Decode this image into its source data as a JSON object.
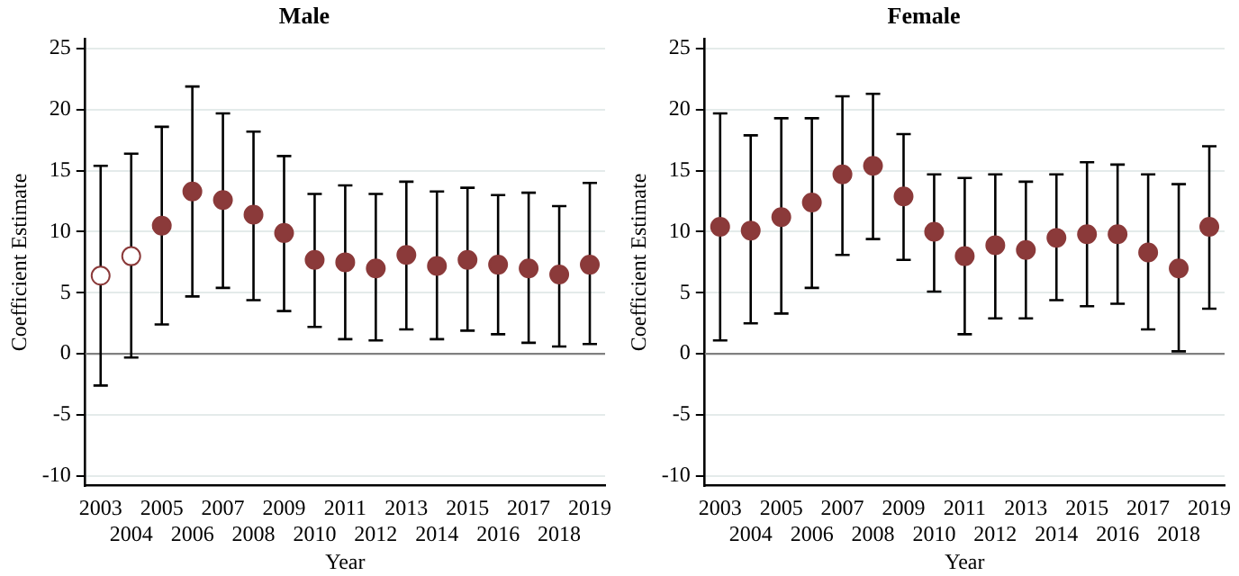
{
  "chart_data": [
    {
      "type": "scatter",
      "title": "Male",
      "xlabel": "Year",
      "ylabel": "Coefficient Estimate",
      "categories": [
        "2003",
        "2004",
        "2005",
        "2006",
        "2007",
        "2008",
        "2009",
        "2010",
        "2011",
        "2012",
        "2013",
        "2014",
        "2015",
        "2016",
        "2017",
        "2018",
        "2019"
      ],
      "ylim": [
        -10.8,
        25.8
      ],
      "yticks": [
        -10,
        -5,
        0,
        5,
        10,
        15,
        20,
        25
      ],
      "grid": "y",
      "marker": "circle",
      "ref_lines": [
        {
          "axis": "y",
          "value": 0,
          "color": "#808080"
        }
      ],
      "series": [
        {
          "color": "#8b3a3a",
          "values": [
            6.4,
            8.0,
            null,
            null,
            null,
            null,
            null,
            null,
            null,
            null,
            null,
            null,
            null,
            null,
            null,
            null,
            null
          ],
          "errors": [
            [
              -2.6,
              15.4
            ],
            [
              -0.3,
              16.4
            ],
            null,
            null,
            null,
            null,
            null,
            null,
            null,
            null,
            null,
            null,
            null,
            null,
            null,
            null,
            null
          ]
        },
        {
          "color": "#8b3a3a",
          "values": [
            null,
            null,
            10.5,
            13.3,
            12.6,
            11.4,
            9.9,
            7.7,
            7.5,
            7.0,
            8.1,
            7.2,
            7.7,
            7.3,
            7.0,
            6.5,
            7.3
          ],
          "errors": [
            null,
            null,
            [
              2.4,
              18.6
            ],
            [
              4.7,
              21.9
            ],
            [
              5.4,
              19.7
            ],
            [
              4.4,
              18.2
            ],
            [
              3.5,
              16.2
            ],
            [
              2.2,
              13.1
            ],
            [
              1.2,
              13.8
            ],
            [
              1.1,
              13.1
            ],
            [
              2.0,
              14.1
            ],
            [
              1.2,
              13.3
            ],
            [
              1.9,
              13.6
            ],
            [
              1.6,
              13.0
            ],
            [
              0.9,
              13.2
            ],
            [
              0.6,
              12.1
            ],
            [
              0.8,
              14.0
            ]
          ]
        }
      ]
    },
    {
      "type": "scatter",
      "title": "Female",
      "xlabel": "Year",
      "ylabel": "Coefficient Estimate",
      "categories": [
        "2003",
        "2004",
        "2005",
        "2006",
        "2007",
        "2008",
        "2009",
        "2010",
        "2011",
        "2012",
        "2013",
        "2014",
        "2015",
        "2016",
        "2017",
        "2018",
        "2019"
      ],
      "ylim": [
        -10.8,
        25.8
      ],
      "yticks": [
        -10,
        -5,
        0,
        5,
        10,
        15,
        20,
        25
      ],
      "grid": "y",
      "marker": "circle",
      "ref_lines": [
        {
          "axis": "y",
          "value": 0,
          "color": "#808080"
        }
      ],
      "series": [
        {
          "color": "#8b3a3a",
          "values": [
            10.4,
            10.1,
            11.2,
            12.4,
            14.7,
            15.4,
            12.9,
            10.0,
            8.0,
            8.9,
            8.5,
            9.5,
            9.8,
            9.8,
            8.3,
            7.0,
            10.4
          ],
          "errors": [
            [
              1.1,
              19.7
            ],
            [
              2.5,
              17.9
            ],
            [
              3.3,
              19.3
            ],
            [
              5.4,
              19.3
            ],
            [
              8.1,
              21.1
            ],
            [
              9.4,
              21.3
            ],
            [
              7.7,
              18.0
            ],
            [
              5.1,
              14.7
            ],
            [
              1.6,
              14.4
            ],
            [
              2.9,
              14.7
            ],
            [
              2.9,
              14.1
            ],
            [
              4.4,
              14.7
            ],
            [
              3.9,
              15.7
            ],
            [
              4.1,
              15.5
            ],
            [
              2.0,
              14.7
            ],
            [
              0.2,
              13.9
            ],
            [
              3.7,
              17.0
            ]
          ]
        }
      ]
    }
  ]
}
